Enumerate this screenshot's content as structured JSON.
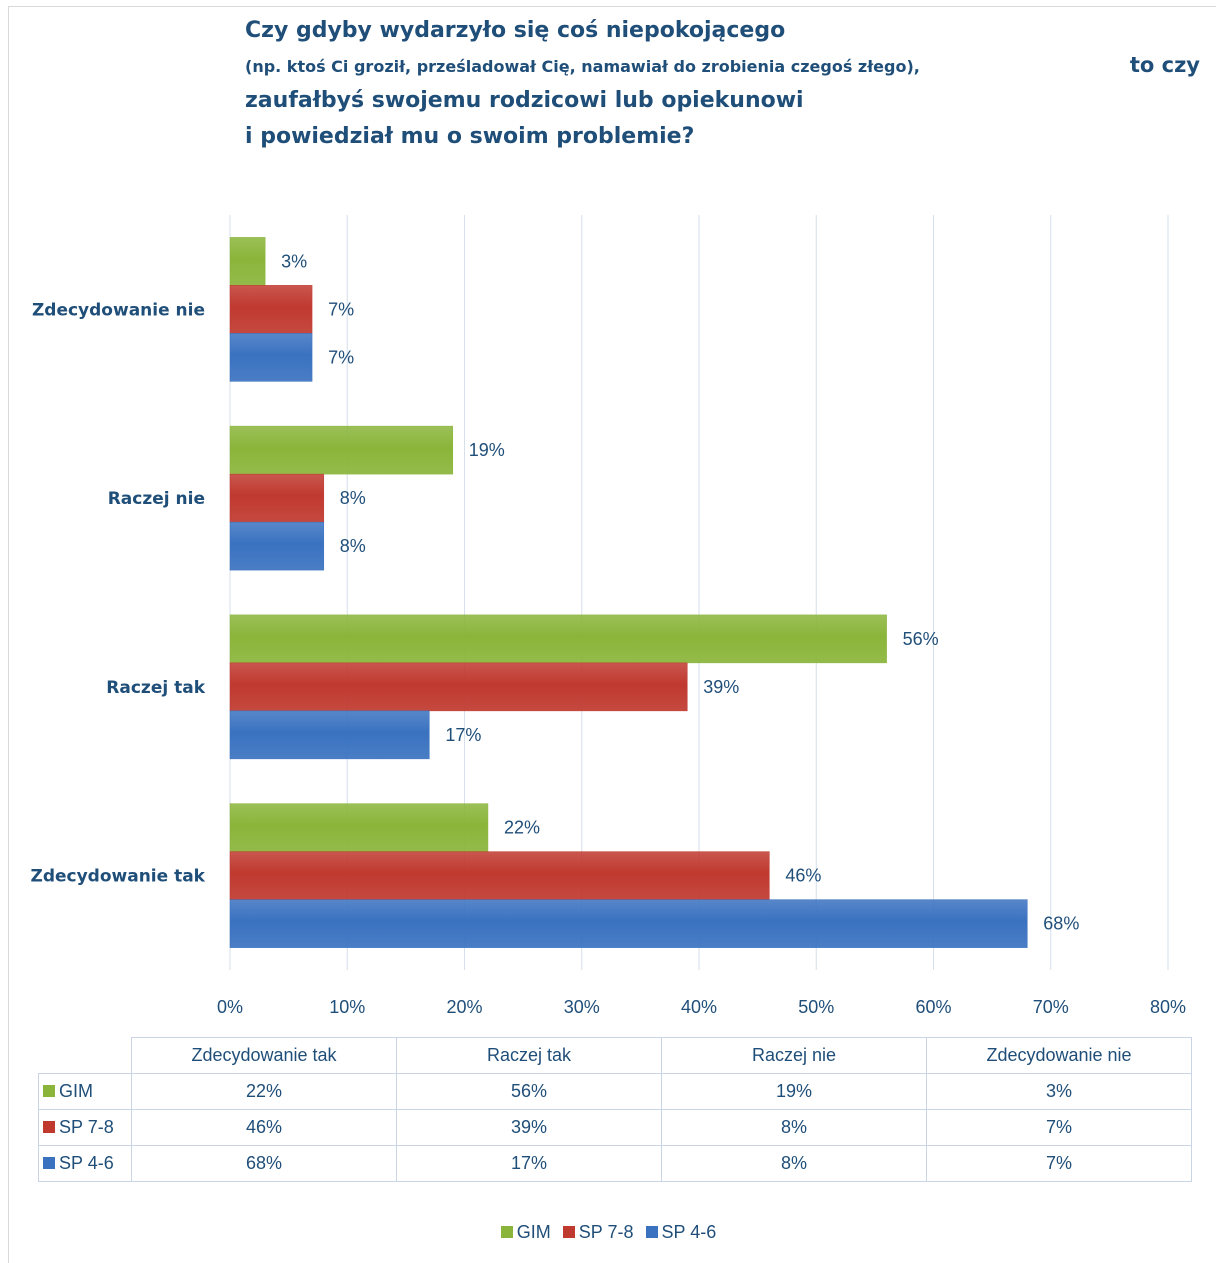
{
  "title": {
    "line1": "Czy gdyby wydarzyło się coś niepokojącego",
    "line2_sub": "(np. ktoś Ci groził, prześladował Cię, namawiał do zrobienia czegoś złego),",
    "line2_cont": "to czy",
    "line3": "zaufałbyś swojemu rodzicowi lub opiekunowi",
    "line4": "i powiedział mu o swoim problemie?"
  },
  "chart_data": {
    "type": "bar",
    "orientation": "horizontal",
    "categories": [
      "Zdecydowanie nie",
      "Raczej nie",
      "Raczej tak",
      "Zdecydowanie tak"
    ],
    "series": [
      {
        "name": "GIM",
        "color": "#8ab53a",
        "values": [
          3,
          19,
          56,
          22
        ],
        "labels": [
          "3%",
          "19%",
          "56%",
          "22%"
        ]
      },
      {
        "name": "SP 7-8",
        "color": "#c0392f",
        "values": [
          7,
          8,
          39,
          46
        ],
        "labels": [
          "7%",
          "8%",
          "39%",
          "46%"
        ]
      },
      {
        "name": "SP 4-6",
        "color": "#3a72c0",
        "values": [
          7,
          8,
          17,
          68
        ],
        "labels": [
          "7%",
          "8%",
          "17%",
          "68%"
        ]
      }
    ],
    "x_ticks": [
      "0%",
      "10%",
      "20%",
      "30%",
      "40%",
      "50%",
      "60%",
      "70%",
      "80%"
    ],
    "xlim": [
      0,
      80
    ],
    "grid": true,
    "legend": "bottom"
  },
  "data_table": {
    "columns": [
      "Zdecydowanie tak",
      "Raczej tak",
      "Raczej nie",
      "Zdecydowanie nie"
    ],
    "rows": [
      {
        "name": "GIM",
        "color": "#8ab53a",
        "cells": [
          "22%",
          "56%",
          "19%",
          "3%"
        ]
      },
      {
        "name": "SP 7-8",
        "color": "#c0392f",
        "cells": [
          "46%",
          "39%",
          "8%",
          "7%"
        ]
      },
      {
        "name": "SP 4-6",
        "color": "#3a72c0",
        "cells": [
          "68%",
          "17%",
          "8%",
          "7%"
        ]
      }
    ]
  },
  "legend": [
    {
      "name": "GIM",
      "color": "#8ab53a"
    },
    {
      "name": "SP 7-8",
      "color": "#c0392f"
    },
    {
      "name": "SP 4-6",
      "color": "#3a72c0"
    }
  ]
}
